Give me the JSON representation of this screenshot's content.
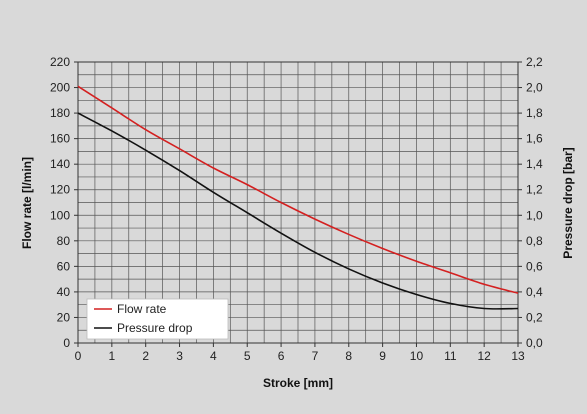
{
  "chart_data": {
    "type": "line",
    "title": "",
    "xlabel": "Stroke [mm]",
    "ylabel_left": "Flow rate [l/min]",
    "ylabel_right": "Pressure drop [bar]",
    "xlim": [
      0,
      13
    ],
    "x_ticks": [
      "0",
      "1",
      "2",
      "3",
      "4",
      "5",
      "6",
      "7",
      "8",
      "9",
      "10",
      "11",
      "12",
      "13"
    ],
    "ylim_left": [
      0,
      220
    ],
    "y_ticks_left": [
      "0",
      "20",
      "40",
      "60",
      "80",
      "100",
      "120",
      "140",
      "160",
      "180",
      "200",
      "220"
    ],
    "ylim_right": [
      0.0,
      2.2
    ],
    "y_ticks_right": [
      "0,0",
      "0,2",
      "0,4",
      "0,6",
      "0,8",
      "1,0",
      "1,2",
      "1,4",
      "1,6",
      "1,8",
      "2,0",
      "2,2"
    ],
    "grid": true,
    "grid_x_step": 0.5,
    "grid_y_step": 10,
    "legend_position": "bottom-left",
    "series": [
      {
        "name": "Flow rate",
        "axis": "left",
        "color": "#d42020",
        "x": [
          0,
          1,
          2,
          3,
          4,
          5,
          6,
          7,
          8,
          9,
          10,
          11,
          12,
          13
        ],
        "values": [
          201,
          184,
          167,
          152,
          137,
          124,
          110,
          97,
          85,
          74,
          64,
          55,
          46,
          39
        ]
      },
      {
        "name": "Pressure drop",
        "axis": "right",
        "color": "#111111",
        "x": [
          0,
          1,
          2,
          3,
          4,
          5,
          6,
          7,
          8,
          9,
          10,
          11,
          12,
          13
        ],
        "values": [
          1.8,
          1.66,
          1.51,
          1.35,
          1.18,
          1.02,
          0.86,
          0.71,
          0.58,
          0.47,
          0.38,
          0.31,
          0.27,
          0.27
        ]
      }
    ]
  }
}
